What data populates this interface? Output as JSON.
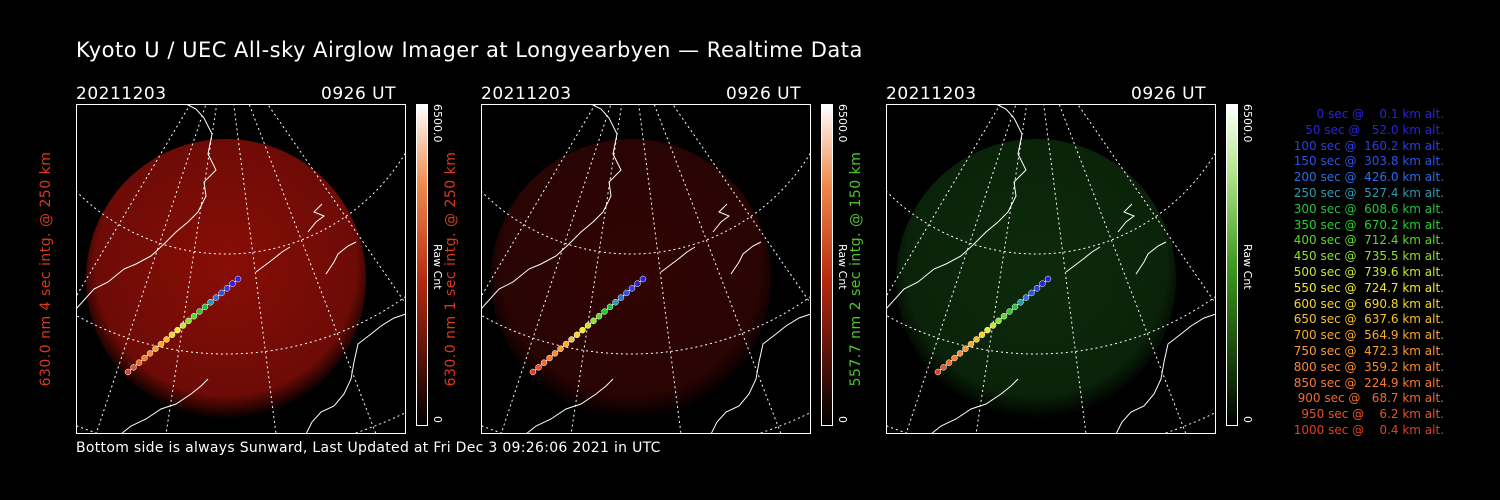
{
  "title": "Kyoto U / UEC All-sky Airglow Imager at Longyearbyen — Realtime Data",
  "footer": "Bottom side is always Sunward, Last Updated at Fri Dec  3 09:26:06 2021 in UTC",
  "panels": [
    {
      "date": "20211203",
      "time": "0926 UT",
      "ylabel": "630.0 nm 4 sec intg. @ 250 km",
      "ylabel_color": "#d93a1c",
      "cbar_max": "6500.0",
      "cbar_min": "0",
      "cbar_label": "Raw Cnt",
      "glow_color": "#a01008",
      "glow_opacity": 0.85,
      "cbar_color": "#b5280f"
    },
    {
      "date": "20211203",
      "time": "0926 UT",
      "ylabel": "630.0 nm 1 sec intg. @ 250 km",
      "ylabel_color": "#d93a1c",
      "cbar_max": "6500.0",
      "cbar_min": "0",
      "cbar_label": "Raw Cnt",
      "glow_color": "#5a0806",
      "glow_opacity": 0.55,
      "cbar_color": "#b5280f"
    },
    {
      "date": "20211203",
      "time": "0926 UT",
      "ylabel": "557.7 nm 2 sec intg. @ 150 km",
      "ylabel_color": "#4ec728",
      "cbar_max": "6500.0",
      "cbar_min": "0",
      "cbar_label": "Raw Cnt",
      "glow_color": "#123d10",
      "glow_opacity": 0.7,
      "cbar_color": "#3d9a1c"
    }
  ],
  "trajectory_legend": [
    {
      "text": "   0 sec @    0.1 km alt.",
      "color": "#2b22e0"
    },
    {
      "text": "  50 sec @   52.0 km alt.",
      "color": "#2b22e0"
    },
    {
      "text": " 100 sec @  160.2 km alt.",
      "color": "#2a3fe4"
    },
    {
      "text": " 150 sec @  303.8 km alt.",
      "color": "#2a55e4"
    },
    {
      "text": " 200 sec @  426.0 km alt.",
      "color": "#2a6ee0"
    },
    {
      "text": " 250 sec @  527.4 km alt.",
      "color": "#2a9ab0"
    },
    {
      "text": " 300 sec @  608.6 km alt.",
      "color": "#23c040"
    },
    {
      "text": " 350 sec @  670.2 km alt.",
      "color": "#23d02a"
    },
    {
      "text": " 400 sec @  712.4 km alt.",
      "color": "#5ad82a"
    },
    {
      "text": " 450 sec @  735.5 km alt.",
      "color": "#8ee02a"
    },
    {
      "text": " 500 sec @  739.6 km alt.",
      "color": "#c8e62a"
    },
    {
      "text": " 550 sec @  724.7 km alt.",
      "color": "#f0ea2a"
    },
    {
      "text": " 600 sec @  690.8 km alt.",
      "color": "#f8d42a"
    },
    {
      "text": " 650 sec @  637.6 km alt.",
      "color": "#f8c02a"
    },
    {
      "text": " 700 sec @  564.9 km alt.",
      "color": "#f8a82a"
    },
    {
      "text": " 750 sec @  472.3 km alt.",
      "color": "#f89a30"
    },
    {
      "text": " 800 sec @  359.2 km alt.",
      "color": "#f88a30"
    },
    {
      "text": " 850 sec @  224.9 km alt.",
      "color": "#f87a30"
    },
    {
      "text": " 900 sec @   68.7 km alt.",
      "color": "#f06a2c"
    },
    {
      "text": " 950 sec @    6.2 km alt.",
      "color": "#e85428"
    },
    {
      "text": "1000 sec @    0.4 km alt.",
      "color": "#e04022"
    }
  ]
}
